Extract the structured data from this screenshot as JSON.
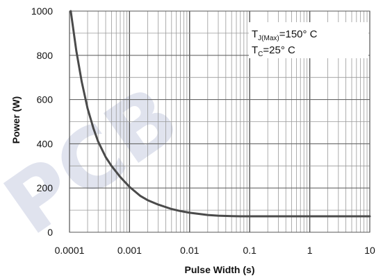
{
  "chart_data": {
    "type": "line",
    "title": "",
    "xlabel": "Pulse Width (s)",
    "ylabel": "Power (W)",
    "x_scale": "log",
    "xlim": [
      0.0001,
      10
    ],
    "ylim": [
      0,
      1000
    ],
    "x_ticks": [
      "0.0001",
      "0.001",
      "0.01",
      "0.1",
      "1",
      "10"
    ],
    "y_ticks": [
      "0",
      "200",
      "400",
      "600",
      "800",
      "1000"
    ],
    "grid": true,
    "annotation": {
      "line1_main": "T",
      "line1_sub": "J(Max)",
      "line1_rest": "=150°  C",
      "line2_main": "T",
      "line2_sub": "C",
      "line2_rest": "=25°  C"
    },
    "watermark": "PCB",
    "colors": {
      "series": "#4a4a4a",
      "grid": "#999999",
      "text": "#111111"
    },
    "series": [
      {
        "points": [
          [
            0.000105,
            1000
          ],
          [
            0.00013,
            820
          ],
          [
            0.00016,
            680
          ],
          [
            0.0002,
            560
          ],
          [
            0.00025,
            470
          ],
          [
            0.0003,
            410
          ],
          [
            0.0004,
            340
          ],
          [
            0.0005,
            300
          ],
          [
            0.0007,
            250
          ],
          [
            0.001,
            205
          ],
          [
            0.0015,
            165
          ],
          [
            0.002,
            145
          ],
          [
            0.003,
            125
          ],
          [
            0.005,
            105
          ],
          [
            0.007,
            96
          ],
          [
            0.01,
            88
          ],
          [
            0.015,
            82
          ],
          [
            0.02,
            78
          ],
          [
            0.03,
            75
          ],
          [
            0.05,
            73
          ],
          [
            0.07,
            72
          ],
          [
            0.1,
            72
          ],
          [
            0.3,
            72
          ],
          [
            1,
            72
          ],
          [
            3,
            72
          ],
          [
            10,
            72
          ]
        ]
      }
    ]
  }
}
